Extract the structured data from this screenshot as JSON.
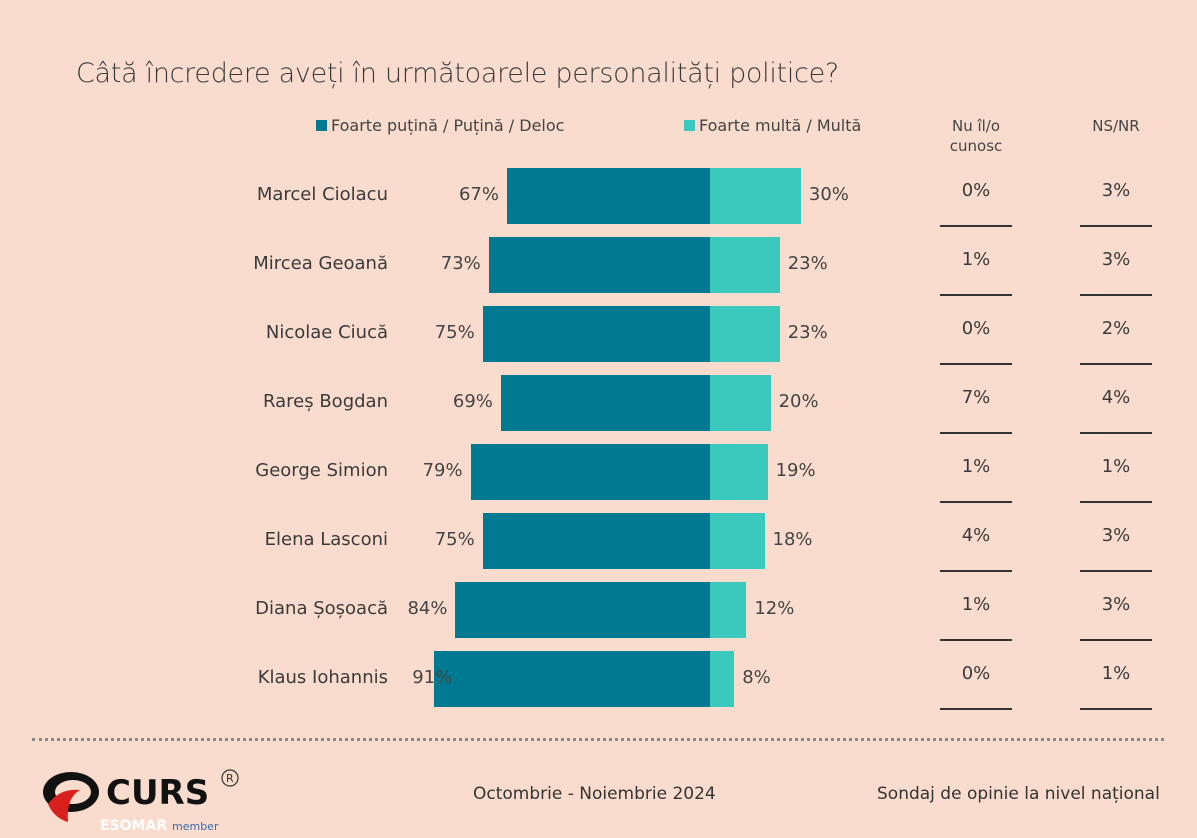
{
  "chart_data": {
    "type": "bar",
    "stacked": "diverging",
    "title": "Câtă încredere aveți în următoarele personalități politice?",
    "categories": [
      "Marcel Ciolacu",
      "Mircea Geoană",
      "Nicolae Ciucă",
      "Rareș Bogdan",
      "George Simion",
      "Elena Lasconi",
      "Diana Șoșoacă",
      "Klaus Iohannis"
    ],
    "series": [
      {
        "name": "Foarte puțină / Puțină / Deloc",
        "color": "#007a92",
        "values": [
          67,
          73,
          75,
          69,
          79,
          75,
          84,
          91
        ]
      },
      {
        "name": "Foarte multă / Multă",
        "color": "#3cc9bd",
        "values": [
          30,
          23,
          23,
          20,
          19,
          18,
          12,
          8
        ]
      }
    ],
    "columns": [
      {
        "header": "Nu îl/o cunosc",
        "values": [
          "0%",
          "1%",
          "0%",
          "7%",
          "1%",
          "4%",
          "1%",
          "0%"
        ]
      },
      {
        "header": "NS/NR",
        "values": [
          "3%",
          "3%",
          "2%",
          "4%",
          "1%",
          "3%",
          "3%",
          "1%"
        ]
      }
    ],
    "legend": "top",
    "grid": false
  },
  "footer": {
    "period": "Octombrie - Noiembrie 2024",
    "survey": "Sondaj de opinie la nivel național",
    "logo_text": "CURS",
    "logo_sub": "ESOMAR member"
  }
}
